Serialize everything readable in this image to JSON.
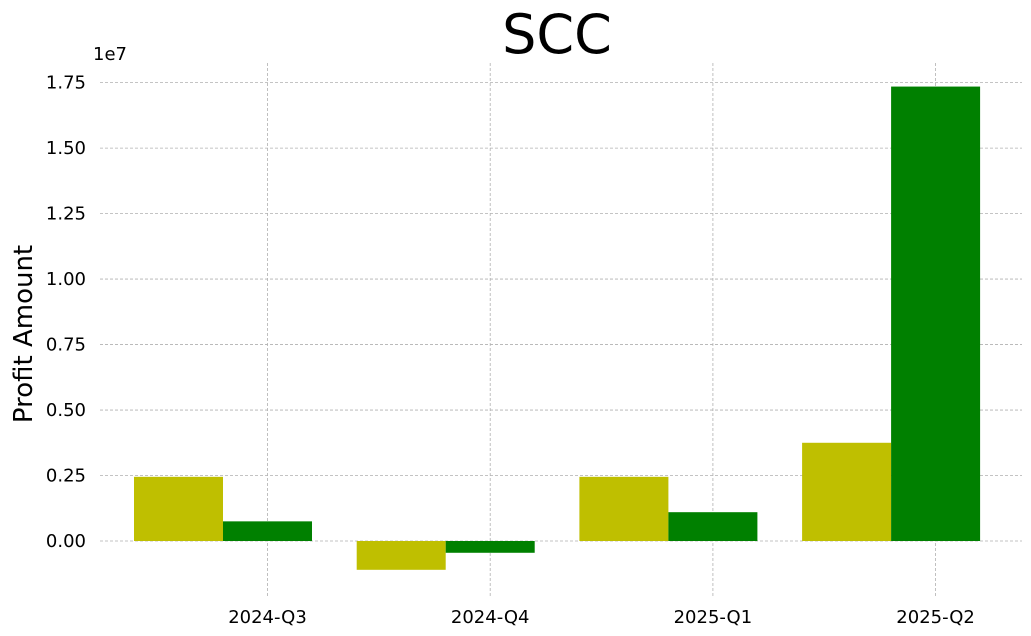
{
  "chart_data": {
    "type": "bar",
    "title": "SCC",
    "ylabel": "Profit Amount",
    "xlabel": "",
    "offset_label": "1e7",
    "categories": [
      "2024-Q3",
      "2024-Q4",
      "2025-Q1",
      "2025-Q2"
    ],
    "series": [
      {
        "values": [
          2450000,
          -1100000,
          2450000,
          3750000
        ],
        "color": "#bfbf00"
      },
      {
        "values": [
          750000,
          -450000,
          1100000,
          17350000
        ],
        "color": "#008000"
      }
    ],
    "ylim": [
      -2100000,
      18250000
    ],
    "yticks": [
      0,
      2500000,
      5000000,
      7500000,
      10000000,
      12500000,
      15000000,
      17500000
    ],
    "ytick_labels": [
      "0.00",
      "0.25",
      "0.50",
      "0.75",
      "1.00",
      "1.25",
      "1.50",
      "1.75"
    ],
    "grid": true
  }
}
